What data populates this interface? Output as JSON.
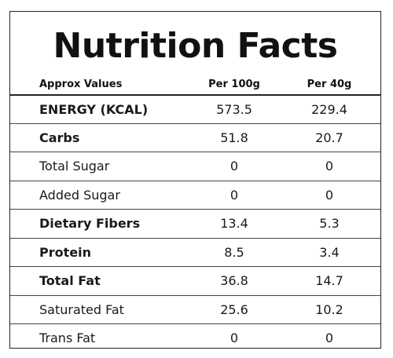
{
  "title": "Nutrition Facts",
  "headers": {
    "label": "Approx Values",
    "col_a": "Per 100g",
    "col_b": "Per 40g"
  },
  "rows": [
    {
      "label": "ENERGY (KCAL)",
      "a": "573.5",
      "b": "229.4",
      "bold": true
    },
    {
      "label": "Carbs",
      "a": "51.8",
      "b": "20.7",
      "bold": true
    },
    {
      "label": "Total Sugar",
      "a": "0",
      "b": "0",
      "bold": false
    },
    {
      "label": "Added Sugar",
      "a": "0",
      "b": "0",
      "bold": false
    },
    {
      "label": "Dietary Fibers",
      "a": "13.4",
      "b": "5.3",
      "bold": true
    },
    {
      "label": "Protein",
      "a": "8.5",
      "b": "3.4",
      "bold": true
    },
    {
      "label": "Total Fat",
      "a": "36.8",
      "b": "14.7",
      "bold": true
    },
    {
      "label": "Saturated Fat",
      "a": "25.6",
      "b": "10.2",
      "bold": false
    },
    {
      "label": "Trans Fat",
      "a": "0",
      "b": "0",
      "bold": false
    }
  ]
}
